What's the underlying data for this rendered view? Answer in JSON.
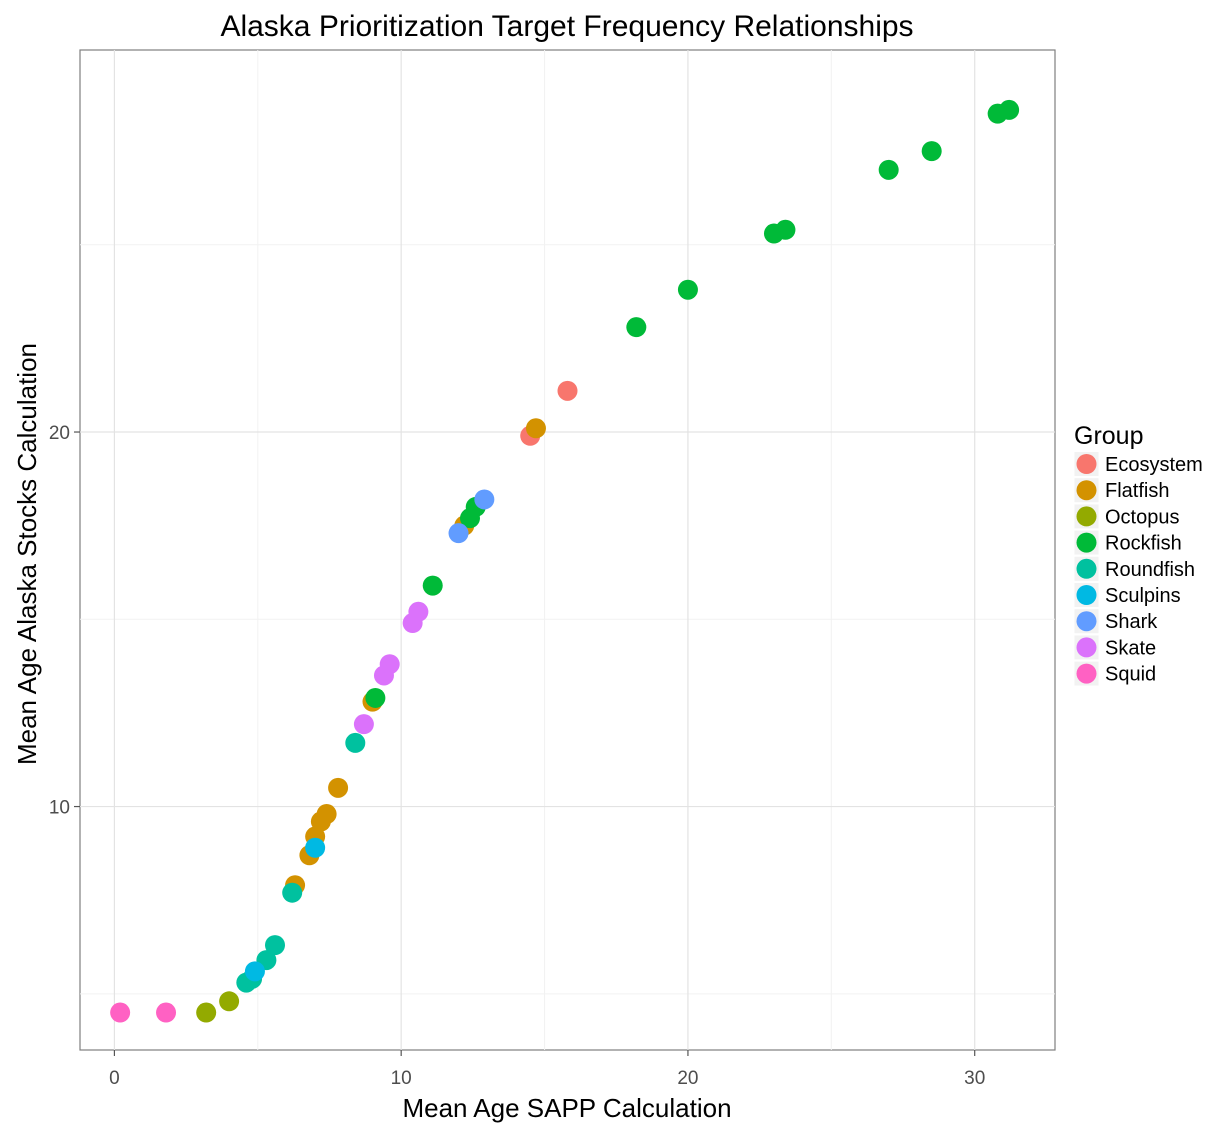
{
  "chart_data": {
    "type": "scatter",
    "title": "Alaska Prioritization Target Frequency Relationships",
    "xlabel": "Mean Age SAPP Calculation",
    "ylabel": "Mean Age Alaska Stocks Calculation",
    "xlim": [
      -1.2,
      32.8
    ],
    "ylim": [
      3.5,
      30.2
    ],
    "x_ticks": [
      0,
      10,
      20,
      30
    ],
    "x_minor_ticks": [
      5,
      15,
      25
    ],
    "y_ticks": [
      10,
      20
    ],
    "y_minor_ticks": [
      5,
      15,
      25
    ],
    "grid": true,
    "legend_title": "Group",
    "legend_position": "right",
    "series": [
      {
        "name": "Ecosystem",
        "color": "#F8766D",
        "points": [
          [
            14.5,
            19.9
          ],
          [
            15.8,
            21.1
          ]
        ]
      },
      {
        "name": "Flatfish",
        "color": "#D39200",
        "points": [
          [
            6.3,
            7.9
          ],
          [
            6.8,
            8.7
          ],
          [
            7.0,
            9.2
          ],
          [
            7.2,
            9.6
          ],
          [
            7.4,
            9.8
          ],
          [
            7.8,
            10.5
          ],
          [
            9.0,
            12.8
          ],
          [
            12.2,
            17.5
          ],
          [
            14.7,
            20.1
          ]
        ]
      },
      {
        "name": "Octopus",
        "color": "#93AA00",
        "points": [
          [
            3.2,
            4.5
          ],
          [
            4.0,
            4.8
          ]
        ]
      },
      {
        "name": "Rockfish",
        "color": "#00BA38",
        "points": [
          [
            9.1,
            12.9
          ],
          [
            11.1,
            15.9
          ],
          [
            12.4,
            17.7
          ],
          [
            12.6,
            18.0
          ],
          [
            18.2,
            22.8
          ],
          [
            20.0,
            23.8
          ],
          [
            23.0,
            25.3
          ],
          [
            23.4,
            25.4
          ],
          [
            27.0,
            27.0
          ],
          [
            28.5,
            27.5
          ],
          [
            30.8,
            28.5
          ],
          [
            31.2,
            28.6
          ]
        ]
      },
      {
        "name": "Roundfish",
        "color": "#00C19F",
        "points": [
          [
            4.6,
            5.3
          ],
          [
            4.8,
            5.4
          ],
          [
            5.3,
            5.9
          ],
          [
            5.6,
            6.3
          ],
          [
            6.2,
            7.7
          ],
          [
            8.4,
            11.7
          ]
        ]
      },
      {
        "name": "Sculpins",
        "color": "#00B9E3",
        "points": [
          [
            4.9,
            5.6
          ],
          [
            7.0,
            8.9
          ]
        ]
      },
      {
        "name": "Shark",
        "color": "#619CFF",
        "points": [
          [
            12.0,
            17.3
          ],
          [
            12.9,
            18.2
          ]
        ]
      },
      {
        "name": "Skate",
        "color": "#DB72FB",
        "points": [
          [
            8.7,
            12.2
          ],
          [
            9.4,
            13.5
          ],
          [
            9.6,
            13.8
          ],
          [
            10.4,
            14.9
          ],
          [
            10.6,
            15.2
          ]
        ]
      },
      {
        "name": "Squid",
        "color": "#FF61C3",
        "points": [
          [
            0.2,
            4.5
          ],
          [
            1.8,
            4.5
          ]
        ]
      }
    ]
  }
}
